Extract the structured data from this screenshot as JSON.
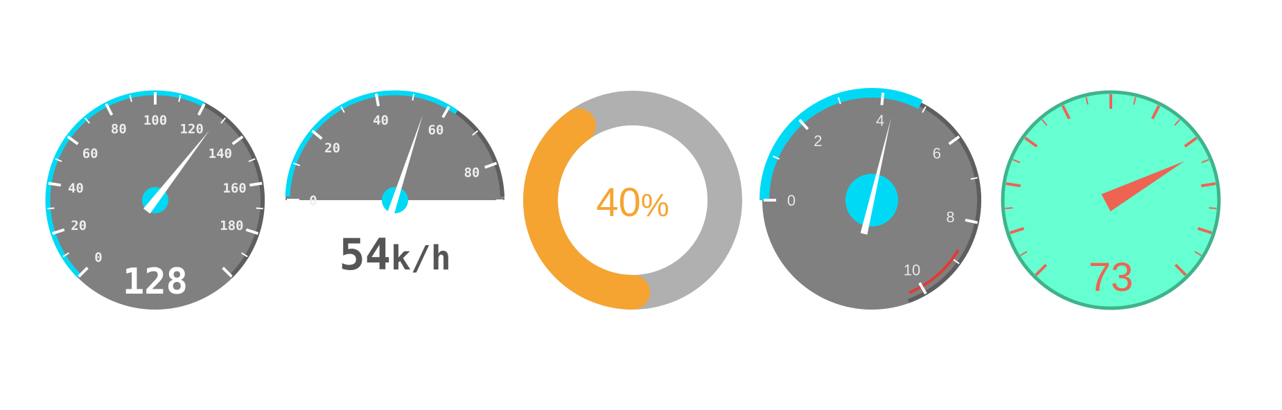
{
  "colors": {
    "gauge_gray": "#808080",
    "gauge_dark_rim": "#5e5e5e",
    "accent_cyan": "#00d9f5",
    "needle_white": "#ffffff",
    "warn_red": "#e53935",
    "donut_track": "#b0b0b0",
    "donut_fill": "#f5a431",
    "mint_face": "#66ffd2",
    "mint_rim": "#3fb38a",
    "coral": "#ee6352"
  },
  "gauges": [
    {
      "kind": "speedometer-full",
      "value": 128,
      "min": 0,
      "max": 200,
      "tick_labels": [
        "0",
        "20",
        "40",
        "60",
        "80",
        "100",
        "120",
        "140",
        "160",
        "180"
      ],
      "accent_max": 120,
      "readout": "128"
    },
    {
      "kind": "speedometer-half",
      "value": 54,
      "min": 0,
      "max": 90,
      "tick_labels": [
        "0",
        "20",
        "40",
        "60",
        "80"
      ],
      "accent_max": 60,
      "readout_value": "54",
      "readout_unit": "k/h"
    },
    {
      "kind": "donut",
      "percent": 40,
      "label": "40",
      "label_unit": "%"
    },
    {
      "kind": "dial",
      "value": 4.3,
      "min": 0,
      "max": 10,
      "tick_labels": [
        "0",
        "2",
        "4",
        "6",
        "8",
        "10"
      ],
      "accent_max": 5,
      "redline_min": 9
    },
    {
      "kind": "mint-meter",
      "value": 73,
      "min": 0,
      "max": 100,
      "readout": "73"
    }
  ]
}
